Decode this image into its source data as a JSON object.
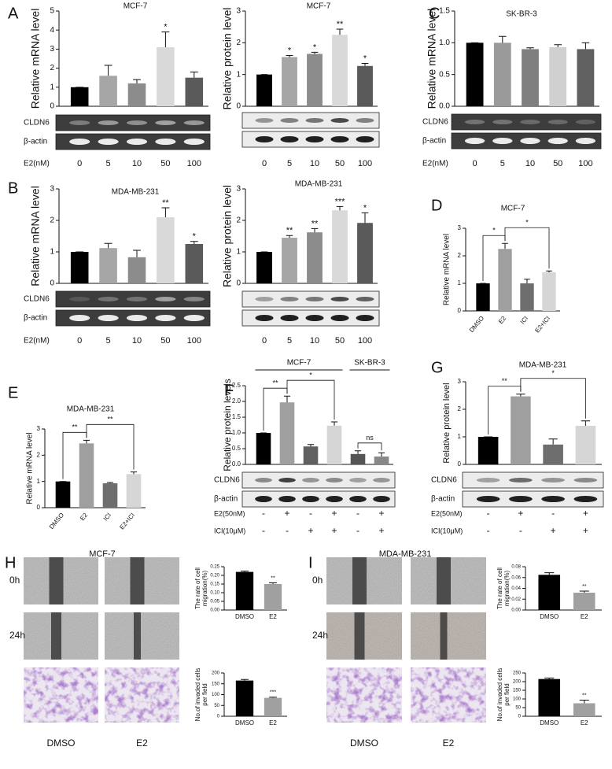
{
  "panel_labels": [
    "A",
    "B",
    "C",
    "D",
    "E",
    "F",
    "G",
    "H",
    "I"
  ],
  "chart_data": [
    {
      "type": "bar",
      "title": "MCF-7",
      "y_label": "Relative mRNA level",
      "categories": [
        "0",
        "5",
        "10",
        "50",
        "100"
      ],
      "x_label": "E2(nM)",
      "values": [
        1,
        1.6,
        1.2,
        3.1,
        1.5
      ],
      "errors": [
        0,
        0.55,
        0.2,
        0.8,
        0.3
      ],
      "significance": [
        null,
        null,
        null,
        "*",
        null
      ],
      "colors": [
        "#000000",
        "#a6a6a6",
        "#8c8c8c",
        "#d9d9d9",
        "#5a5a5a"
      ],
      "ylim": [
        0,
        5
      ],
      "yticks": [
        0,
        1,
        2,
        3,
        4,
        5
      ],
      "blot_labels": [
        "CLDN6",
        "β-actin"
      ]
    },
    {
      "type": "bar",
      "title": "MCF-7",
      "y_label": "Relative protein level",
      "categories": [
        "0",
        "5",
        "10",
        "50",
        "100"
      ],
      "values": [
        1,
        1.55,
        1.65,
        2.25,
        1.27
      ],
      "errors": [
        0,
        0.05,
        0.05,
        0.18,
        0.08
      ],
      "significance": [
        null,
        "*",
        "*",
        "**",
        "*"
      ],
      "colors": [
        "#000000",
        "#a6a6a6",
        "#8c8c8c",
        "#d9d9d9",
        "#5a5a5a"
      ],
      "ylim": [
        0,
        3
      ],
      "yticks": [
        0,
        1,
        2,
        3
      ]
    },
    {
      "type": "bar",
      "title": "SK-BR-3",
      "y_label": "Relative mRNA level",
      "categories": [
        "0",
        "5",
        "10",
        "50",
        "100"
      ],
      "x_label": "E2(nM)",
      "values": [
        1,
        1.0,
        0.9,
        0.93,
        0.9
      ],
      "errors": [
        0,
        0.1,
        0.02,
        0.04,
        0.1
      ],
      "significance": [
        null,
        null,
        null,
        null,
        null
      ],
      "colors": [
        "#000000",
        "#9a9a9a",
        "#7f7f7f",
        "#d0d0d0",
        "#606060"
      ],
      "ylim": [
        0,
        1.5
      ],
      "yticks": [
        {
          "value": 0,
          "label": "0.0"
        },
        0.5,
        {
          "value": 1,
          "label": "1.0"
        },
        1.5
      ],
      "blot_labels": [
        "CLDN6",
        "β-actin"
      ]
    },
    {
      "type": "bar",
      "title": "MDA-MB-231",
      "y_label": "Relative mRNA level",
      "categories": [
        "0",
        "5",
        "10",
        "50",
        "100"
      ],
      "x_label": "E2(nM)",
      "values": [
        1,
        1.12,
        0.83,
        2.1,
        1.25
      ],
      "errors": [
        0,
        0.15,
        0.22,
        0.3,
        0.08
      ],
      "significance": [
        null,
        null,
        null,
        "**",
        "*"
      ],
      "colors": [
        "#000000",
        "#a6a6a6",
        "#8c8c8c",
        "#d9d9d9",
        "#5a5a5a"
      ],
      "ylim": [
        0,
        3
      ],
      "yticks": [
        0,
        1,
        2,
        3
      ],
      "blot_labels": [
        "CLDN6",
        "β-actin"
      ]
    },
    {
      "type": "bar",
      "title": "MDA-MB-231",
      "y_label": "Relative protein level",
      "categories": [
        "0",
        "5",
        "10",
        "50",
        "100"
      ],
      "values": [
        1,
        1.45,
        1.62,
        2.32,
        1.92
      ],
      "errors": [
        0,
        0.07,
        0.12,
        0.12,
        0.32
      ],
      "significance": [
        null,
        "**",
        "**",
        "***",
        "*"
      ],
      "colors": [
        "#000000",
        "#a6a6a6",
        "#8c8c8c",
        "#d9d9d9",
        "#5a5a5a"
      ],
      "ylim": [
        0,
        3
      ],
      "yticks": [
        0,
        1,
        2,
        3
      ]
    },
    {
      "type": "bar",
      "title": "MCF-7",
      "y_label": "Relative mRNA level",
      "categories": [
        "DMSO",
        "E2",
        "ICI",
        "E2+ICI"
      ],
      "values": [
        1,
        2.25,
        1.0,
        1.4
      ],
      "errors": [
        0,
        0.2,
        0.15,
        0.05
      ],
      "bracket_labels": [
        "*",
        "*"
      ],
      "colors": [
        "#000000",
        "#9f9f9f",
        "#6e6e6e",
        "#d6d6d6"
      ],
      "ylim": [
        0,
        3
      ],
      "yticks": [
        0,
        1,
        2,
        3
      ]
    },
    {
      "type": "bar",
      "title": "MDA-MB-231",
      "y_label": "Relative mRNA level",
      "categories": [
        "DMSO",
        "E2",
        "ICI",
        "E2+ICI"
      ],
      "values": [
        1,
        2.45,
        0.93,
        1.28
      ],
      "errors": [
        0,
        0.12,
        0.03,
        0.08
      ],
      "bracket_labels": [
        "**",
        "**"
      ],
      "colors": [
        "#000000",
        "#9f9f9f",
        "#6e6e6e",
        "#d6d6d6"
      ],
      "ylim": [
        0,
        3
      ],
      "yticks": [
        0,
        1,
        2,
        3
      ]
    },
    {
      "type": "bar",
      "y_label": "Relative protein levels",
      "groups": [
        "MCF-7",
        "SK-BR-3"
      ],
      "values": [
        1,
        1.97,
        0.57,
        1.23,
        0.33,
        0.25
      ],
      "errors": [
        0,
        0.2,
        0.06,
        0.12,
        0.1,
        0.12
      ],
      "bracket_labels": [
        "**",
        "*",
        "ns"
      ],
      "colors": [
        "#000000",
        "#a0a0a0",
        "#606060",
        "#d5d5d5",
        "#555555",
        "#888888"
      ],
      "ylim": [
        0,
        2.5
      ],
      "yticks": [
        {
          "value": 0,
          "label": "0.0"
        },
        0.5,
        {
          "value": 1,
          "label": "1.0"
        },
        1.5,
        {
          "value": 2,
          "label": "2.0"
        },
        2.5
      ],
      "blot_labels": [
        "CLDN6",
        "β-actin"
      ],
      "treatments": [
        {
          "label": "E2(50nM)",
          "marks": [
            "-",
            "+",
            "-",
            "+",
            "-",
            "+"
          ]
        },
        {
          "label": "ICI(10μM)",
          "marks": [
            "-",
            "-",
            "+",
            "+",
            "-",
            "+"
          ]
        }
      ]
    },
    {
      "type": "bar",
      "title": "MDA-MB-231",
      "y_label": "Relative protein level",
      "values": [
        1,
        2.47,
        0.72,
        1.4
      ],
      "errors": [
        0,
        0.08,
        0.2,
        0.18
      ],
      "bracket_labels": [
        "**",
        "*"
      ],
      "colors": [
        "#000000",
        "#9f9f9f",
        "#6e6e6e",
        "#d6d6d6"
      ],
      "ylim": [
        0,
        3
      ],
      "yticks": [
        0,
        1,
        2,
        3
      ],
      "blot_labels": [
        "CLDN6",
        "β-actin"
      ],
      "treatments": [
        {
          "label": "E2(50nM)",
          "marks": [
            "-",
            "+",
            "-",
            "+"
          ]
        },
        {
          "label": "ICI(10μM)",
          "marks": [
            "-",
            "-",
            "+",
            "+"
          ]
        }
      ]
    },
    {
      "type": "bar",
      "y_label": [
        "The rate of cell",
        "migration(%)"
      ],
      "categories": [
        "DMSO",
        "E2"
      ],
      "values": [
        0.22,
        0.15
      ],
      "errors": [
        0.005,
        0.007
      ],
      "significance": [
        null,
        "**"
      ],
      "colors": [
        "#000000",
        "#a0a0a0"
      ],
      "ylim": [
        0,
        0.25
      ],
      "yticks": [
        {
          "value": 0,
          "label": "0.00"
        },
        0.05,
        {
          "value": 0.1,
          "label": "0.10"
        },
        0.15,
        {
          "value": 0.2,
          "label": "0.20"
        },
        0.25
      ]
    },
    {
      "type": "bar",
      "y_label": [
        "No.of invaded cells",
        "per field"
      ],
      "categories": [
        "DMSO",
        "E2"
      ],
      "values": [
        165,
        85
      ],
      "errors": [
        5,
        3
      ],
      "significance": [
        null,
        "***"
      ],
      "colors": [
        "#000000",
        "#a0a0a0"
      ],
      "ylim": [
        0,
        200
      ],
      "yticks": [
        0,
        50,
        100,
        150,
        200
      ]
    },
    {
      "type": "bar",
      "y_label": [
        "The rate of cell",
        "migration(%)"
      ],
      "categories": [
        "DMSO",
        "E2"
      ],
      "values": [
        0.065,
        0.032
      ],
      "errors": [
        0.004,
        0.003
      ],
      "significance": [
        null,
        "**"
      ],
      "colors": [
        "#000000",
        "#a0a0a0"
      ],
      "ylim": [
        0,
        0.08
      ],
      "yticks": [
        {
          "value": 0,
          "label": "0.00"
        },
        0.02,
        0.04,
        0.06,
        0.08
      ]
    },
    {
      "type": "bar",
      "y_label": [
        "No.of invaded cells",
        "per field"
      ],
      "categories": [
        "DMSO",
        "E2"
      ],
      "values": [
        215,
        75
      ],
      "errors": [
        6,
        18
      ],
      "significance": [
        null,
        "**"
      ],
      "colors": [
        "#000000",
        "#a0a0a0"
      ],
      "ylim": [
        0,
        250
      ],
      "yticks": [
        0,
        50,
        100,
        150,
        200,
        250
      ]
    }
  ],
  "images": [
    {
      "title": "MCF-7",
      "rows": [
        "0h",
        "24h"
      ],
      "columns": [
        "DMSO",
        "E2"
      ]
    },
    {
      "title": "MDA-MB-231",
      "rows": [
        "0h",
        "24h"
      ],
      "columns": [
        "DMSO",
        "E2"
      ]
    }
  ]
}
